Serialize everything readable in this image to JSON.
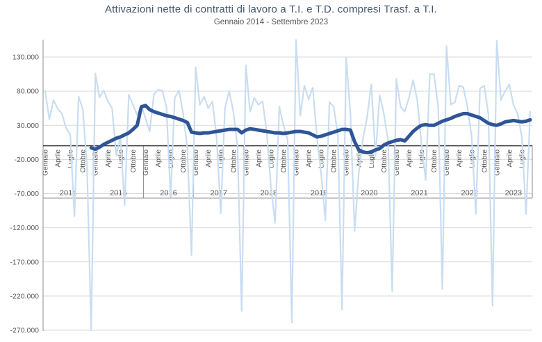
{
  "page": {
    "title": "Attivazioni nette di contratti di lavoro a T.I. e T.D. compresi Trasf. a T.I.",
    "subtitle": "Gennaio 2014 - Settembre 2023"
  },
  "chart_data": {
    "type": "line",
    "title": "Attivazioni nette di contratti di lavoro a T.I. e T.D. compresi Trasf. a T.I.",
    "subtitle": "Gennaio 2014 - Settembre 2023",
    "x_start": "Gennaio 2014",
    "x_end": "Settembre 2023",
    "months_total": 117,
    "grid": true,
    "legend": false,
    "y_axis": {
      "min": -270000,
      "max": 130000,
      "step": 50000,
      "tick_values": [
        130000,
        80000,
        30000,
        -20000,
        -70000,
        -120000,
        -170000,
        -220000,
        -270000
      ],
      "tick_labels": [
        "130.000",
        "80.000",
        "30.000",
        "-20.000",
        "-70.000",
        "-120.000",
        "-170.000",
        "-220.000",
        "-270.000"
      ]
    },
    "x_axis": {
      "month_tick_labels": [
        "Gennaio",
        "Aprile",
        "Luglio",
        "Ottobre"
      ],
      "month_tick_offsets": [
        0,
        3,
        6,
        9
      ],
      "years": [
        "2014",
        "2015",
        "2016",
        "2017",
        "2018",
        "2019",
        "2020",
        "2021",
        "2022",
        "2023"
      ]
    },
    "colors": {
      "monthly_line": "#C9DDF2",
      "trend_line": "#2F5597",
      "gridline": "#D9D9D9",
      "zero_axis": "#262626",
      "axis_lines": "#8C8C8C",
      "title": "#44546A",
      "labels": "#595959"
    },
    "series": [
      {
        "role": "monthly",
        "start_index": 0,
        "values": [
          80000,
          39000,
          67000,
          54000,
          47000,
          26000,
          16000,
          -103000,
          72000,
          54000,
          -30000,
          -270000,
          106000,
          71000,
          81000,
          65000,
          55000,
          -14000,
          13000,
          -87000,
          75000,
          60000,
          45000,
          60000,
          40000,
          21000,
          75000,
          82000,
          81000,
          57000,
          -75000,
          70000,
          81000,
          47000,
          -4000,
          -160000,
          115000,
          60000,
          72000,
          55000,
          65000,
          13000,
          -99000,
          55000,
          80000,
          50000,
          0,
          -242000,
          118000,
          50000,
          70000,
          60000,
          65000,
          20000,
          -60000,
          -113000,
          57000,
          30000,
          9000,
          -259000,
          155000,
          44000,
          88000,
          68000,
          85000,
          13000,
          -40000,
          -109000,
          64000,
          57000,
          16000,
          -240000,
          129000,
          47000,
          -125000,
          -40000,
          10000,
          42000,
          90000,
          -15000,
          74000,
          47000,
          9000,
          -213000,
          98000,
          57000,
          50000,
          70000,
          96000,
          67000,
          3000,
          -50000,
          105000,
          105000,
          57000,
          -210000,
          146000,
          60000,
          64000,
          88000,
          86000,
          57000,
          13000,
          -100000,
          84000,
          88000,
          47000,
          -234000,
          154000,
          67000,
          80000,
          90000,
          60000,
          47000,
          13000,
          -100000,
          50000
        ]
      },
      {
        "role": "trend",
        "start_index": 11,
        "values": [
          -3000,
          -5000,
          -2000,
          2000,
          5000,
          8000,
          11000,
          13000,
          16000,
          19000,
          24000,
          30000,
          57000,
          59000,
          53000,
          50000,
          48000,
          46000,
          44000,
          43000,
          41000,
          39000,
          37000,
          34000,
          20000,
          19000,
          18000,
          19000,
          19000,
          20000,
          21000,
          22000,
          23000,
          24000,
          24000,
          24000,
          19000,
          23000,
          25000,
          24000,
          23000,
          22000,
          21000,
          20000,
          19000,
          19000,
          18000,
          19000,
          20000,
          21000,
          21000,
          20000,
          19000,
          16000,
          13000,
          14000,
          16000,
          18000,
          20000,
          22000,
          24000,
          24000,
          23000,
          6000,
          -6000,
          -9000,
          -10000,
          -9000,
          -6000,
          -4000,
          1000,
          4000,
          6000,
          8000,
          9000,
          7000,
          14000,
          21000,
          26000,
          30000,
          31000,
          30000,
          30000,
          33000,
          36000,
          38000,
          40000,
          43000,
          45000,
          47000,
          47000,
          45000,
          43000,
          41000,
          37000,
          33000,
          31000,
          30000,
          32000,
          35000,
          36000,
          37000,
          36000,
          35000,
          36000,
          38000
        ]
      }
    ]
  }
}
